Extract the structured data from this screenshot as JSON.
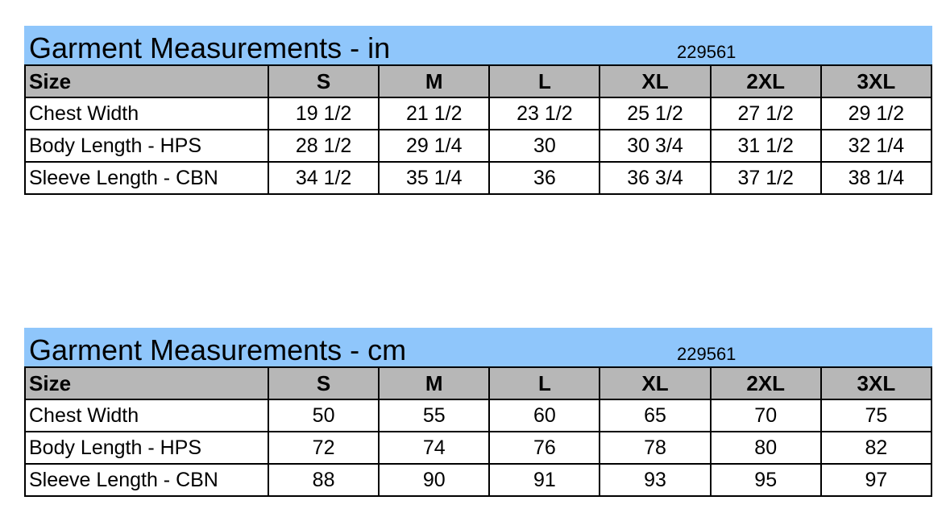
{
  "tables": [
    {
      "title": "Garment Measurements - in",
      "code": "229561",
      "headers": [
        "Size",
        "S",
        "M",
        "L",
        "XL",
        "2XL",
        "3XL"
      ],
      "rows": [
        {
          "label": "Chest Width",
          "values": [
            "19 1/2",
            "21 1/2",
            "23 1/2",
            "25 1/2",
            "27 1/2",
            "29 1/2"
          ]
        },
        {
          "label": "Body Length - HPS",
          "values": [
            "28 1/2",
            "29 1/4",
            "30",
            "30 3/4",
            "31 1/2",
            "32 1/4"
          ]
        },
        {
          "label": "Sleeve Length - CBN",
          "values": [
            "34 1/2",
            "35 1/4",
            "36",
            "36 3/4",
            "37 1/2",
            "38 1/4"
          ]
        }
      ]
    },
    {
      "title": "Garment Measurements - cm",
      "code": "229561",
      "headers": [
        "Size",
        "S",
        "M",
        "L",
        "XL",
        "2XL",
        "3XL"
      ],
      "rows": [
        {
          "label": "Chest Width",
          "values": [
            "50",
            "55",
            "60",
            "65",
            "70",
            "75"
          ]
        },
        {
          "label": "Body Length - HPS",
          "values": [
            "72",
            "74",
            "76",
            "78",
            "80",
            "82"
          ]
        },
        {
          "label": "Sleeve Length - CBN",
          "values": [
            "88",
            "90",
            "91",
            "93",
            "95",
            "97"
          ]
        }
      ]
    }
  ],
  "colors": {
    "title_bar": "#8fc6fb",
    "header_row": "#b7b7b7"
  }
}
